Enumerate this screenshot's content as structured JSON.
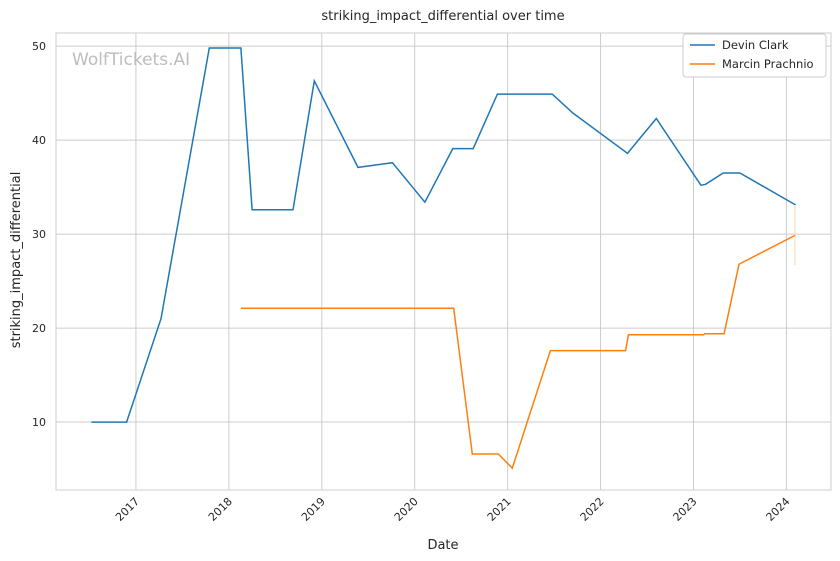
{
  "chart_data": {
    "type": "line",
    "title": "striking_impact_differential over time",
    "xlabel": "Date",
    "ylabel": "striking_impact_differential",
    "watermark": "WolfTickets.AI",
    "xlim": [
      2016.14,
      2024.48
    ],
    "ylim": [
      2.77,
      51.4
    ],
    "xticks": [
      2017,
      2018,
      2019,
      2020,
      2021,
      2022,
      2023,
      2024
    ],
    "xtick_labels": [
      "2017",
      "2018",
      "2019",
      "2020",
      "2021",
      "2022",
      "2023",
      "2024"
    ],
    "yticks": [
      10,
      20,
      30,
      40,
      50
    ],
    "ytick_labels": [
      "10",
      "20",
      "30",
      "40",
      "50"
    ],
    "grid": true,
    "legend_position": "top-right",
    "series": [
      {
        "name": "Devin Clark",
        "color": "#1f77b4",
        "x": [
          2016.52,
          2016.9,
          2017.27,
          2017.79,
          2018.13,
          2018.25,
          2018.69,
          2018.92,
          2019.39,
          2019.76,
          2020.11,
          2020.41,
          2020.63,
          2020.89,
          2021.48,
          2021.7,
          2022.29,
          2022.6,
          2023.08,
          2023.13,
          2023.32,
          2023.5,
          2024.1
        ],
        "y": [
          10,
          10,
          21,
          49.8,
          49.8,
          32.6,
          32.6,
          46.3,
          37.1,
          37.6,
          33.4,
          39.1,
          39.1,
          44.9,
          44.9,
          42.9,
          38.6,
          42.3,
          35.2,
          35.3,
          36.5,
          36.5,
          33.1
        ]
      },
      {
        "name": "Marcin Prachnio",
        "color": "#ff7f0e",
        "x": [
          2018.13,
          2020.42,
          2020.62,
          2020.9,
          2021.05,
          2021.46,
          2022.27,
          2022.3,
          2023.11,
          2023.12,
          2023.33,
          2023.49,
          2024.1
        ],
        "y": [
          22.1,
          22.1,
          6.6,
          6.6,
          5.1,
          17.6,
          17.6,
          19.3,
          19.3,
          19.4,
          19.4,
          26.8,
          29.9
        ]
      }
    ]
  }
}
